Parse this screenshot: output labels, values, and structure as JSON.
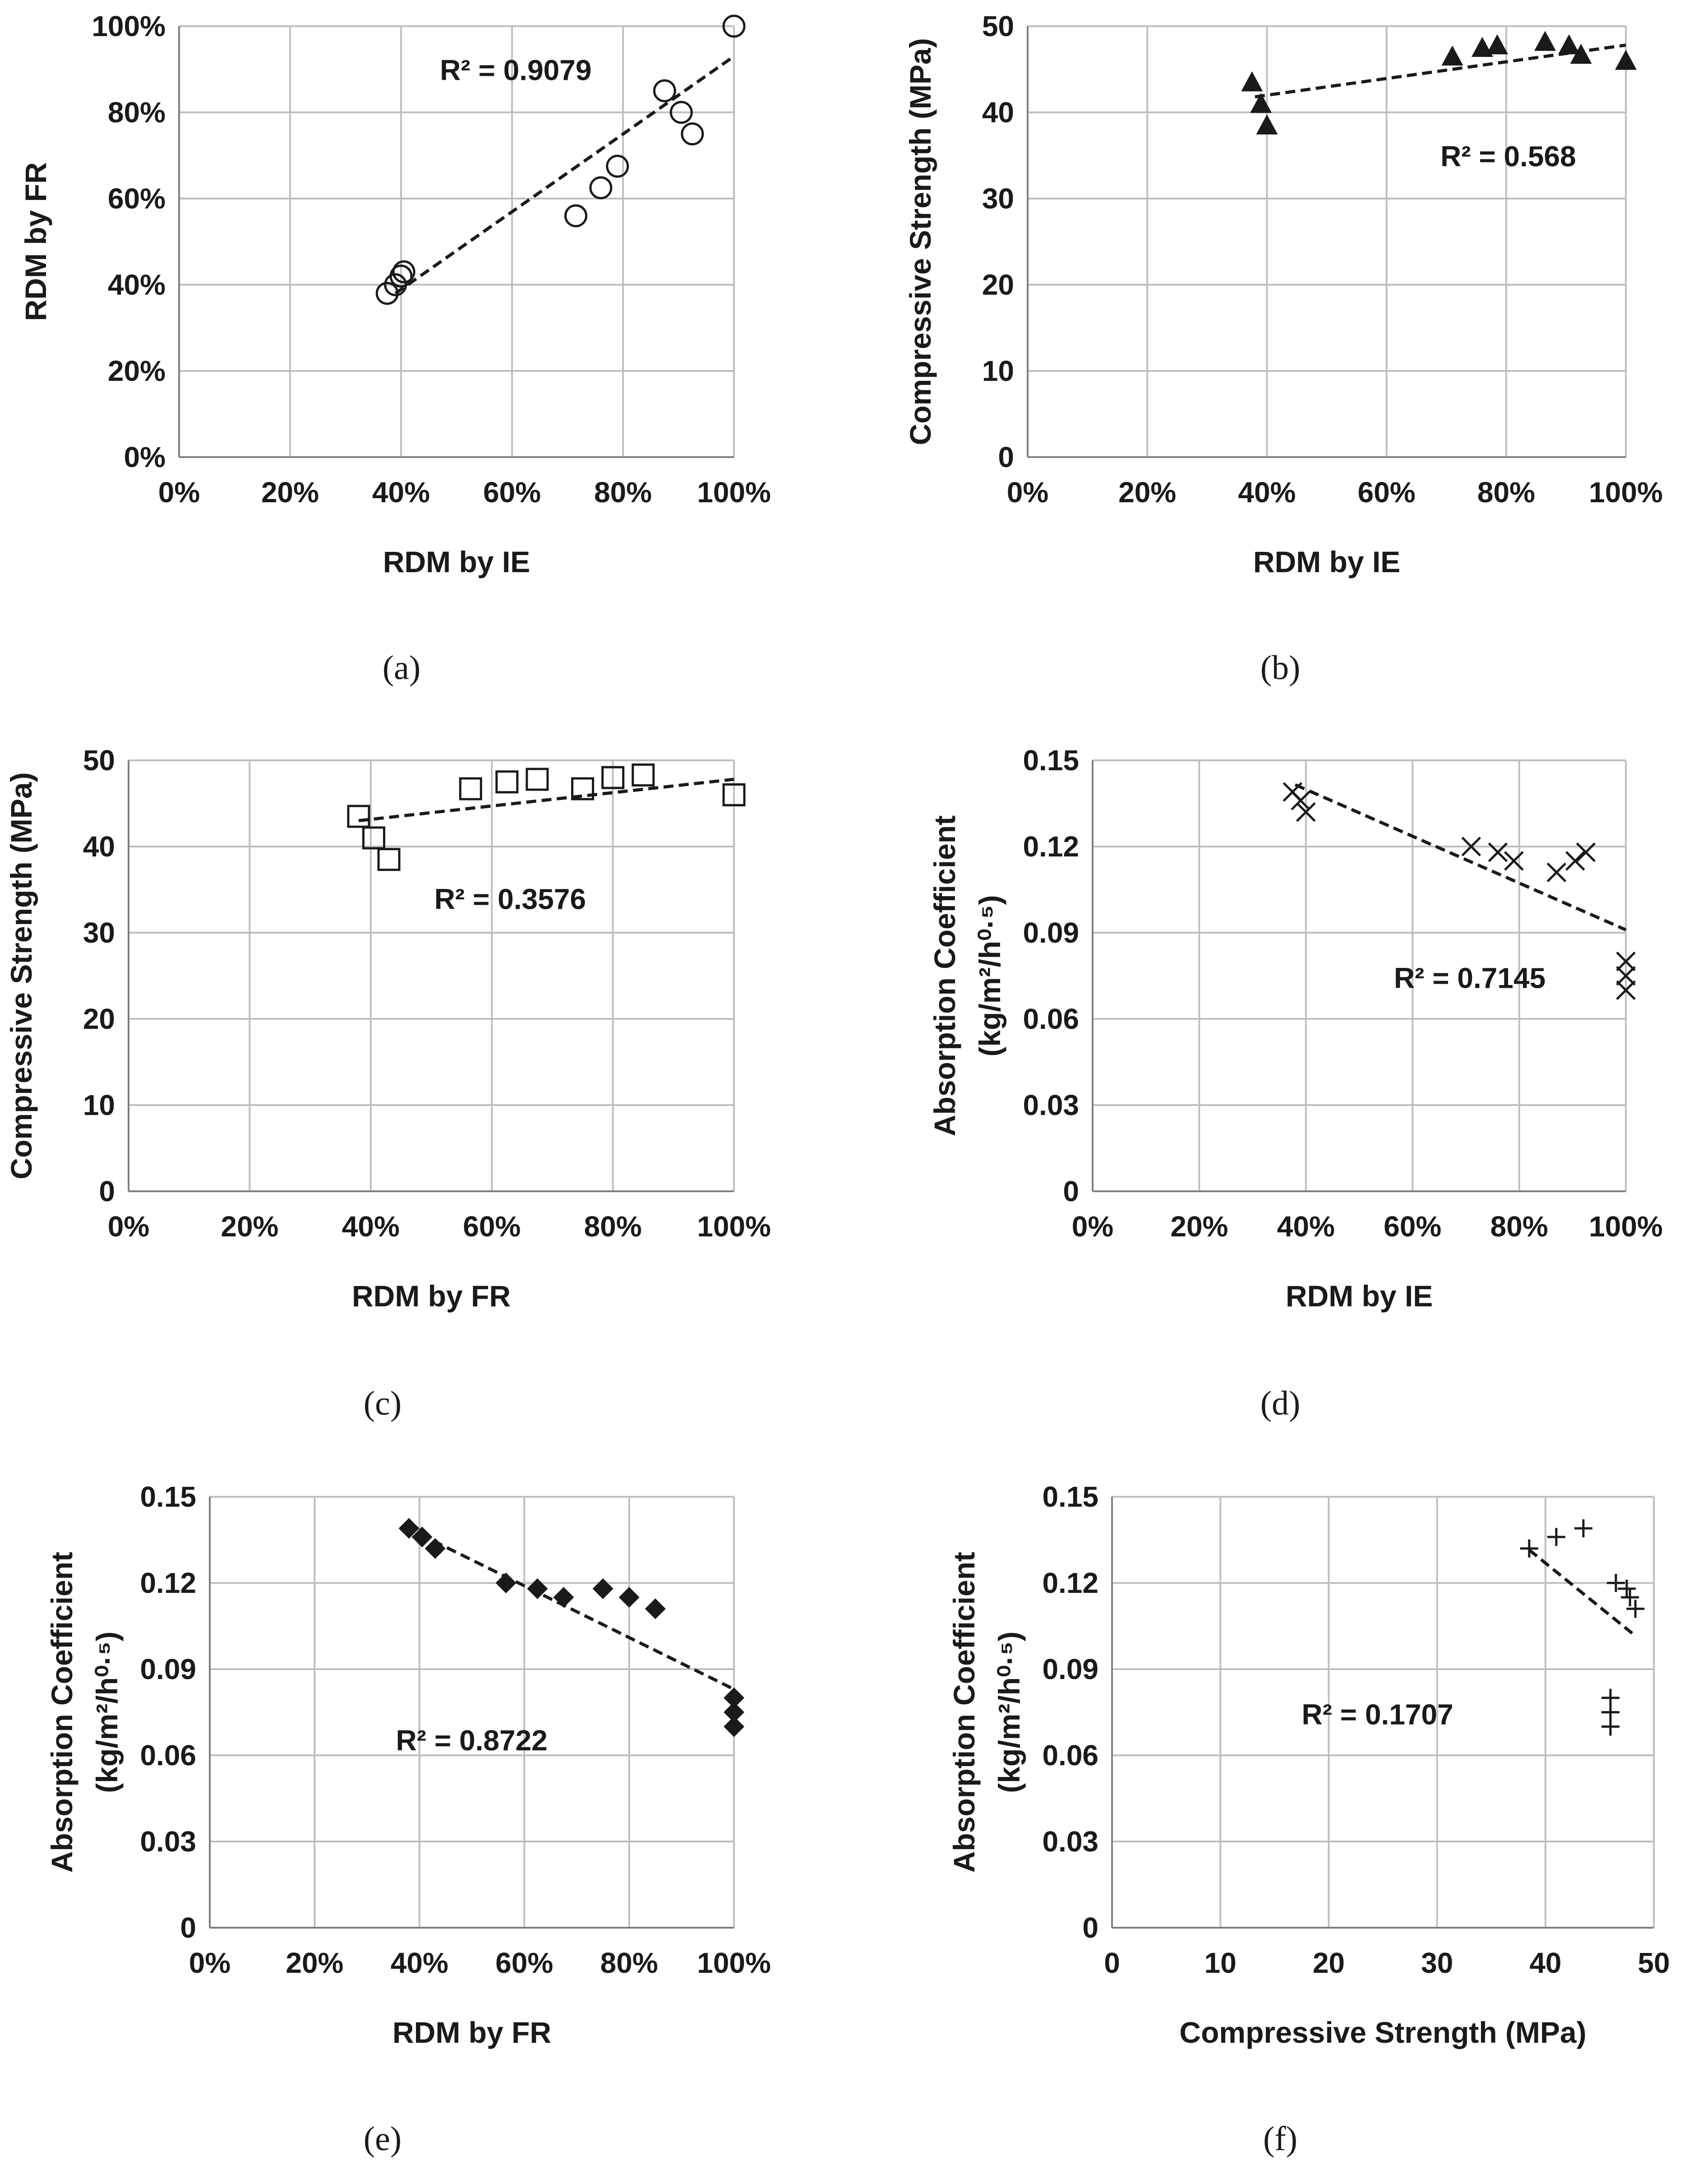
{
  "colors": {
    "grid": "#bfbfbf",
    "axis": "#7f7f7f",
    "ink": "#1a1a1a",
    "trend": "#1a1a1a"
  },
  "chart_data": [
    {
      "id": "a",
      "caption": "(a)",
      "type": "scatter",
      "marker": "circle-open",
      "xlabel": "RDM by IE",
      "ylabel": "RDM by FR",
      "xlim": [
        0,
        1
      ],
      "ylim": [
        0,
        1
      ],
      "xticks": [
        0,
        0.2,
        0.4,
        0.6,
        0.8,
        1.0
      ],
      "yticks": [
        0,
        0.2,
        0.4,
        0.6,
        0.8,
        1.0
      ],
      "xtick_labels": [
        "0%",
        "20%",
        "40%",
        "60%",
        "80%",
        "100%"
      ],
      "ytick_labels": [
        "0%",
        "20%",
        "40%",
        "60%",
        "80%",
        "100%"
      ],
      "r2_label": "R² = 0.9079",
      "r2_anchor": [
        0.47,
        0.9
      ],
      "trendline": {
        "x": [
          0.39,
          1.0
        ],
        "y": [
          0.38,
          0.93
        ]
      },
      "points": {
        "x": [
          0.375,
          0.39,
          0.4,
          0.405,
          0.715,
          0.76,
          0.79,
          0.875,
          0.905,
          0.925,
          1.0
        ],
        "y": [
          0.38,
          0.4,
          0.42,
          0.43,
          0.56,
          0.625,
          0.675,
          0.85,
          0.8,
          0.75,
          1.0
        ]
      }
    },
    {
      "id": "b",
      "caption": "(b)",
      "type": "scatter",
      "marker": "triangle-filled",
      "xlabel": "RDM by IE",
      "ylabel": "Compressive Strength (MPa)",
      "xlim": [
        0,
        1
      ],
      "ylim": [
        0,
        50
      ],
      "xticks": [
        0,
        0.2,
        0.4,
        0.6,
        0.8,
        1.0
      ],
      "yticks": [
        0,
        10,
        20,
        30,
        40,
        50
      ],
      "xtick_labels": [
        "0%",
        "20%",
        "40%",
        "60%",
        "80%",
        "100%"
      ],
      "ytick_labels": [
        "0",
        "10",
        "20",
        "30",
        "40",
        "50"
      ],
      "r2_label": "R² = 0.568",
      "r2_anchor": [
        0.69,
        35
      ],
      "trendline": {
        "x": [
          0.38,
          1.0
        ],
        "y": [
          41.8,
          47.8
        ]
      },
      "points": {
        "x": [
          0.375,
          0.39,
          0.4,
          0.71,
          0.76,
          0.785,
          0.865,
          0.905,
          0.925,
          1.0
        ],
        "y": [
          43.5,
          41.0,
          38.5,
          46.5,
          47.5,
          47.8,
          48.2,
          47.8,
          46.7,
          46.0
        ]
      }
    },
    {
      "id": "c",
      "caption": "(c)",
      "type": "scatter",
      "marker": "square-open",
      "xlabel": "RDM by FR",
      "ylabel": "Compressive Strength (MPa)",
      "xlim": [
        0,
        1
      ],
      "ylim": [
        0,
        50
      ],
      "xticks": [
        0,
        0.2,
        0.4,
        0.6,
        0.8,
        1.0
      ],
      "yticks": [
        0,
        10,
        20,
        30,
        40,
        50
      ],
      "xtick_labels": [
        "0%",
        "20%",
        "40%",
        "60%",
        "80%",
        "100%"
      ],
      "ytick_labels": [
        "0",
        "10",
        "20",
        "30",
        "40",
        "50"
      ],
      "r2_label": "R² = 0.3576",
      "r2_anchor": [
        0.505,
        34
      ],
      "trendline": {
        "x": [
          0.38,
          1.0
        ],
        "y": [
          43.0,
          47.8
        ]
      },
      "points": {
        "x": [
          0.38,
          0.405,
          0.43,
          0.565,
          0.625,
          0.675,
          0.75,
          0.8,
          0.85,
          1.0,
          1.0
        ],
        "y": [
          43.5,
          41.0,
          38.5,
          46.7,
          47.5,
          47.8,
          46.7,
          48.0,
          48.3,
          46.0,
          46.0
        ]
      }
    },
    {
      "id": "d",
      "caption": "(d)",
      "type": "scatter",
      "marker": "x",
      "xlabel": "RDM by IE",
      "ylabel": "Absorption Coefficient",
      "ylabel_units": "(kg/m²/h⁰·⁵)",
      "xlim": [
        0,
        1
      ],
      "ylim": [
        0,
        0.15
      ],
      "xticks": [
        0,
        0.2,
        0.4,
        0.6,
        0.8,
        1.0
      ],
      "yticks": [
        0,
        0.03,
        0.06,
        0.09,
        0.12,
        0.15
      ],
      "xtick_labels": [
        "0%",
        "20%",
        "40%",
        "60%",
        "80%",
        "100%"
      ],
      "ytick_labels": [
        "0",
        "0.03",
        "0.06",
        "0.09",
        "0.12",
        "0.15"
      ],
      "r2_label": "R² = 0.7145",
      "r2_anchor": [
        0.565,
        0.0745
      ],
      "trendline": {
        "x": [
          0.38,
          1.0
        ],
        "y": [
          0.1415,
          0.091
        ]
      },
      "points": {
        "x": [
          0.375,
          0.39,
          0.4,
          0.71,
          0.76,
          0.79,
          0.87,
          0.905,
          0.925,
          1.0,
          1.0,
          1.0
        ],
        "y": [
          0.139,
          0.136,
          0.132,
          0.12,
          0.118,
          0.115,
          0.111,
          0.115,
          0.118,
          0.08,
          0.075,
          0.07
        ]
      }
    },
    {
      "id": "e",
      "caption": "(e)",
      "type": "scatter",
      "marker": "diamond-filled",
      "xlabel": "RDM by FR",
      "ylabel": "Absorption Coefficient",
      "ylabel_units": "(kg/m²/h⁰·⁵)",
      "xlim": [
        0,
        1
      ],
      "ylim": [
        0,
        0.15
      ],
      "xticks": [
        0,
        0.2,
        0.4,
        0.6,
        0.8,
        1.0
      ],
      "yticks": [
        0,
        0.03,
        0.06,
        0.09,
        0.12,
        0.15
      ],
      "xtick_labels": [
        "0%",
        "20%",
        "40%",
        "60%",
        "80%",
        "100%"
      ],
      "ytick_labels": [
        "0",
        "0.03",
        "0.06",
        "0.09",
        "0.12",
        "0.15"
      ],
      "r2_label": "R² = 0.8722",
      "r2_anchor": [
        0.355,
        0.0655
      ],
      "trendline": {
        "x": [
          0.4,
          1.0
        ],
        "y": [
          0.137,
          0.083
        ]
      },
      "points": {
        "x": [
          0.38,
          0.405,
          0.43,
          0.565,
          0.625,
          0.675,
          0.75,
          0.8,
          0.85,
          1.0,
          1.0,
          1.0
        ],
        "y": [
          0.139,
          0.136,
          0.132,
          0.12,
          0.118,
          0.115,
          0.118,
          0.115,
          0.111,
          0.08,
          0.075,
          0.07
        ]
      }
    },
    {
      "id": "f",
      "caption": "(f)",
      "type": "scatter",
      "marker": "plus",
      "xlabel": "Compressive Strength (MPa)",
      "ylabel": "Absorption Coefficient",
      "ylabel_units": "(kg/m²/h⁰·⁵)",
      "xlim": [
        0,
        50
      ],
      "ylim": [
        0,
        0.15
      ],
      "xticks": [
        0,
        10,
        20,
        30,
        40,
        50
      ],
      "yticks": [
        0,
        0.03,
        0.06,
        0.09,
        0.12,
        0.15
      ],
      "xtick_labels": [
        "0",
        "10",
        "20",
        "30",
        "40",
        "50"
      ],
      "ytick_labels": [
        "0",
        "0.03",
        "0.06",
        "0.09",
        "0.12",
        "0.15"
      ],
      "r2_label": "R² = 0.1707",
      "r2_anchor": [
        17.5,
        0.0745
      ],
      "trendline": {
        "x": [
          38.5,
          48.0
        ],
        "y": [
          0.1315,
          0.1025
        ]
      },
      "points": {
        "x": [
          38.5,
          41.0,
          43.5,
          46.5,
          47.5,
          47.8,
          48.3,
          46.0,
          46.0,
          46.0
        ],
        "y": [
          0.132,
          0.136,
          0.139,
          0.12,
          0.118,
          0.115,
          0.111,
          0.08,
          0.075,
          0.07
        ]
      }
    }
  ]
}
